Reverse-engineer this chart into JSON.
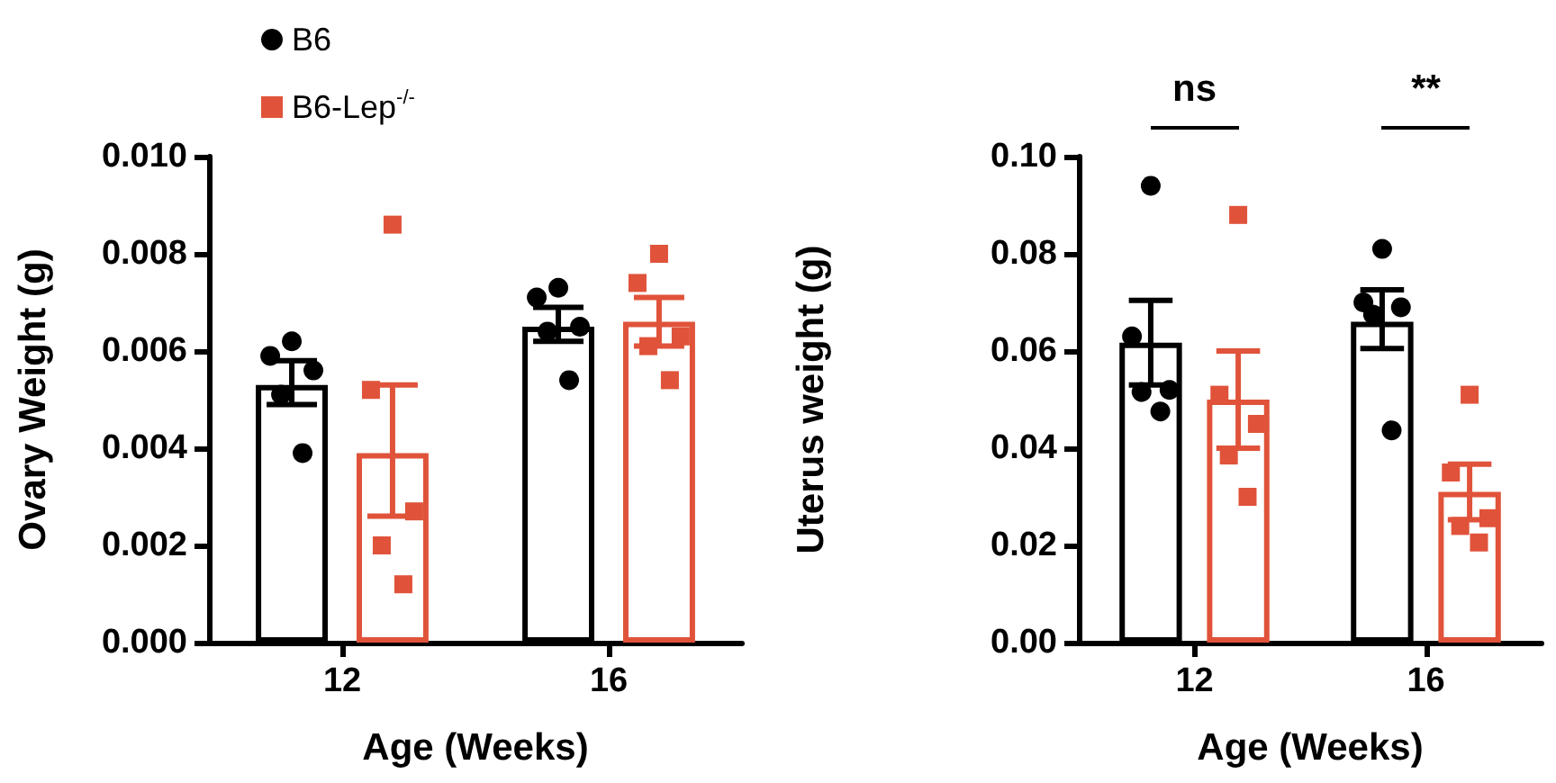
{
  "chart_data": [
    {
      "type": "bar",
      "xlabel": "Age (Weeks)",
      "ylabel": "Ovary Weight (g)",
      "categories": [
        "12",
        "16"
      ],
      "series": [
        {
          "color": "#000000",
          "values": [
            0.0053,
            0.0065
          ],
          "errors": [
            [
              0.0049,
              0.0058
            ],
            [
              0.0062,
              0.0069
            ]
          ]
        },
        {
          "color": "#e0533a",
          "values": [
            0.0039,
            0.0066
          ],
          "errors": [
            [
              0.0026,
              0.0053
            ],
            [
              0.0061,
              0.0071
            ]
          ]
        },
        {
          "type": "scatter",
          "name": "B6",
          "color": "#000000",
          "marker": "circle",
          "x": [
            "12",
            "12",
            "12",
            "12",
            "12",
            "16",
            "16",
            "16",
            "16",
            "16"
          ],
          "values": [
            0.0062,
            0.0059,
            0.0056,
            0.0051,
            0.0039,
            0.0073,
            0.0071,
            0.0065,
            0.0064,
            0.0054
          ]
        },
        {
          "type": "scatter",
          "name": "B6-Lep$^{-/-}$",
          "color": "#e0533a",
          "marker": "square",
          "x": [
            "12",
            "12",
            "12",
            "12",
            "12",
            "16",
            "16",
            "16",
            "16",
            "16"
          ],
          "values": [
            0.0086,
            0.0052,
            0.0027,
            0.002,
            0.0012,
            0.008,
            0.0074,
            0.0063,
            0.0061,
            0.0054
          ]
        }
      ],
      "ylim": [
        0,
        0.01
      ],
      "yticks": [
        {
          "value": 0,
          "label": "0.000"
        },
        0.002,
        0.004,
        0.006,
        0.008,
        {
          "value": 0.01,
          "label": "0.010"
        }
      ],
      "grid": false,
      "legend": "top"
    },
    {
      "type": "bar",
      "xlabel": "Age (Weeks)",
      "ylabel": "Uterus weight (g)",
      "categories": [
        "12",
        "16"
      ],
      "series": [
        {
          "color": "#000000",
          "values": [
            0.0617,
            0.066
          ],
          "errors": [
            [
              0.053,
              0.0704
            ],
            [
              0.0605,
              0.0726
            ]
          ]
        },
        {
          "color": "#e0533a",
          "values": [
            0.05,
            0.031
          ],
          "errors": [
            [
              0.04,
              0.06
            ],
            [
              0.0253,
              0.0367
            ]
          ]
        },
        {
          "type": "scatter",
          "color": "#000000",
          "marker": "circle",
          "x": [
            "12",
            "12",
            "12",
            "12",
            "12",
            "16",
            "16",
            "16",
            "16",
            "16"
          ],
          "values": [
            0.094,
            0.063,
            0.052,
            0.052,
            0.048,
            0.081,
            0.07,
            0.069,
            0.068,
            0.044
          ]
        },
        {
          "type": "scatter",
          "color": "#e0533a",
          "marker": "square",
          "x": [
            "12",
            "12",
            "12",
            "12",
            "12",
            "16",
            "16",
            "16",
            "16",
            "16"
          ],
          "values": [
            0.088,
            0.051,
            0.045,
            0.0385,
            0.03,
            0.051,
            0.035,
            0.0256,
            0.024,
            0.0206
          ]
        }
      ],
      "ylim": [
        0,
        0.1
      ],
      "yticks": [
        {
          "value": 0,
          "label": "0.00"
        },
        0.02,
        0.04,
        0.06,
        0.08,
        {
          "value": 0.1,
          "label": "0.10"
        }
      ],
      "grid": false,
      "legend": false,
      "annotations": [
        "ns",
        "**"
      ]
    }
  ]
}
